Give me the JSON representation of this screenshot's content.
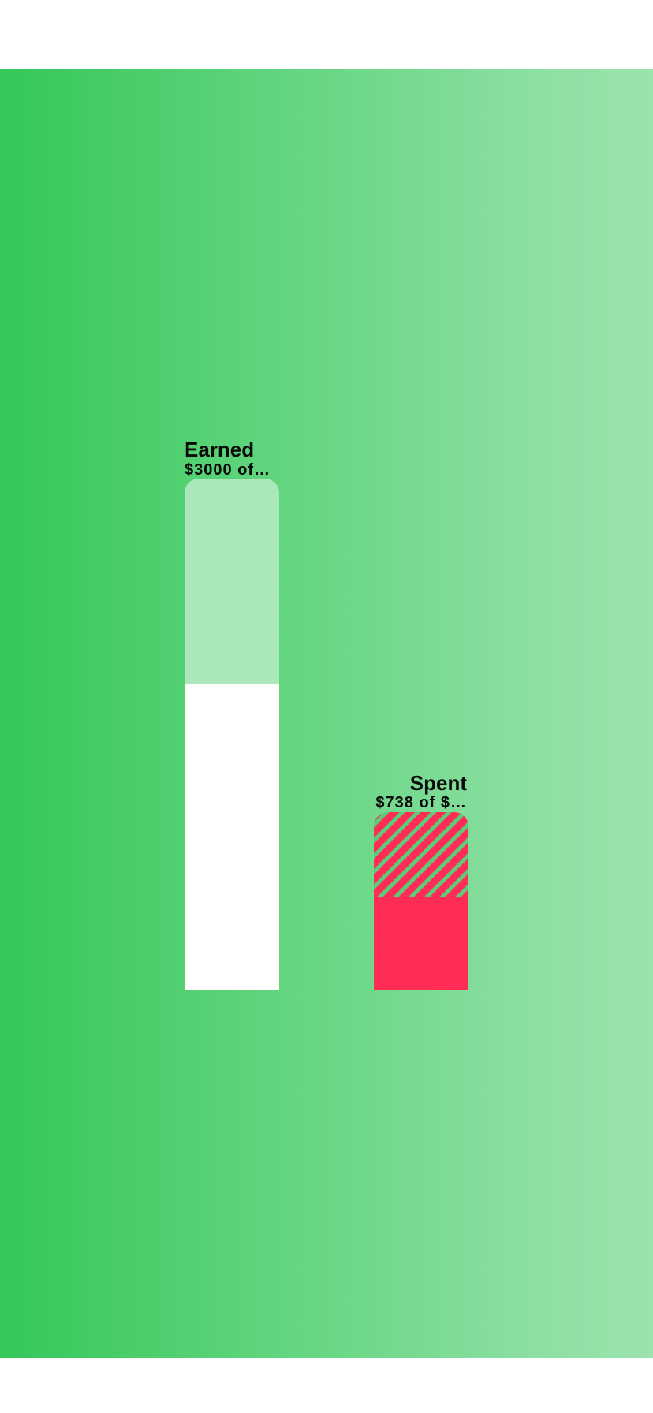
{
  "earned": {
    "title": "Earned",
    "subtitle": "$3000 of…",
    "fill_fraction": 0.6,
    "remaining_color": "#aae8bb",
    "fill_color": "#ffffff"
  },
  "spent": {
    "title": "Spent",
    "subtitle": "$738 of $…",
    "fill_fraction": 0.52,
    "hatch_color": "#ff2d55",
    "fill_color": "#ff2d55"
  },
  "colors": {
    "background_start": "#34c759",
    "background_end": "#9ce3ad"
  }
}
